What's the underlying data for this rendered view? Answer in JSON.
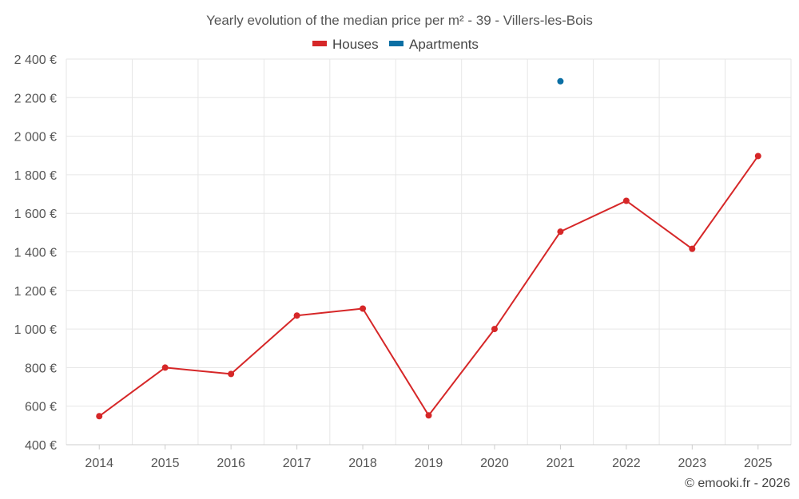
{
  "chart_data": {
    "type": "line",
    "title": "Yearly evolution of the median price per m² - 39 - Villers-les-Bois",
    "categories": [
      "2014",
      "2015",
      "2016",
      "2017",
      "2018",
      "2019",
      "2020",
      "2021",
      "2022",
      "2023",
      "2025"
    ],
    "y_ticks": [
      "400 €",
      "600 €",
      "800 €",
      "1 000 €",
      "1 200 €",
      "1 400 €",
      "1 600 €",
      "1 800 €",
      "2 000 €",
      "2 200 €",
      "2 400 €"
    ],
    "ylim": [
      400,
      2400
    ],
    "grid": true,
    "legend_position": "top-center",
    "series": [
      {
        "name": "Houses",
        "color": "#d62728",
        "values": [
          548,
          800,
          767,
          1070,
          1106,
          552,
          1000,
          1505,
          1665,
          1416,
          1897
        ]
      },
      {
        "name": "Apartments",
        "color": "#0b6fa4",
        "values": [
          null,
          null,
          null,
          null,
          null,
          null,
          null,
          2285,
          null,
          null,
          null
        ]
      }
    ]
  },
  "credit": "© emooki.fr - 2026"
}
